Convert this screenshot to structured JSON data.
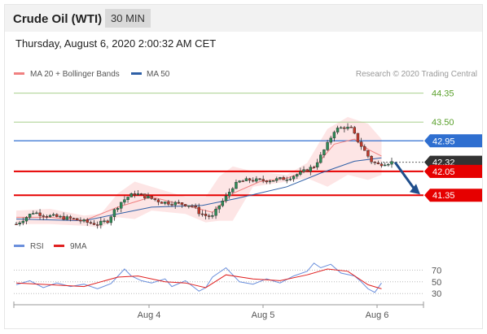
{
  "header": {
    "instrument": "Crude Oil (WTI)",
    "timeframe": "30 MIN",
    "datetime": "Thursday, August 6, 2020 2:00:32 AM CET"
  },
  "legend": {
    "items": [
      {
        "label": "MA 20 + Bollinger Bands",
        "color": "#f08080"
      },
      {
        "label": "MA 50",
        "color": "#2e5fa6"
      }
    ],
    "credit": "Research © 2020 Trading Central"
  },
  "rsi_legend": {
    "items": [
      {
        "label": "RSI",
        "color": "#6a8fdc"
      },
      {
        "label": "9MA",
        "color": "#e02020"
      }
    ]
  },
  "colors": {
    "up_candle": "#2e8b57",
    "down_candle": "#c0392b",
    "bollinger_fill": "#fde2e2",
    "support": "#e60000",
    "pivot": "#2f6fd0",
    "target_line": "#a8d08d",
    "arrow": "#1f4e8c",
    "current_price": "#333333"
  },
  "chart_data": [
    {
      "type": "candlestick",
      "title": "",
      "x_labels": [
        "Aug 4",
        "Aug 5",
        "Aug 6"
      ],
      "ylim": [
        40.4,
        44.7
      ],
      "current_price": 42.32,
      "horizontal_levels": [
        {
          "value": 44.35,
          "label": "44.35",
          "kind": "target"
        },
        {
          "value": 43.5,
          "label": "43.50",
          "kind": "target"
        },
        {
          "value": 42.95,
          "label": "42.95",
          "kind": "pivot"
        },
        {
          "value": 42.05,
          "label": "42.05",
          "kind": "support"
        },
        {
          "value": 41.35,
          "label": "41.35",
          "kind": "support"
        }
      ],
      "current_price_label": "42.32",
      "expected_move": {
        "from": 42.32,
        "to": 41.35
      },
      "price_points": [
        [
          0,
          40.5
        ],
        [
          5,
          40.85
        ],
        [
          9,
          40.75
        ],
        [
          13,
          40.7
        ],
        [
          17,
          40.65
        ],
        [
          21,
          40.55
        ],
        [
          24,
          40.5
        ],
        [
          27,
          40.6
        ],
        [
          29,
          40.9
        ],
        [
          31,
          41.15
        ],
        [
          33,
          41.3
        ],
        [
          35,
          41.4
        ],
        [
          37,
          41.35
        ],
        [
          40,
          41.25
        ],
        [
          43,
          41.15
        ],
        [
          46,
          41.12
        ],
        [
          49,
          41.1
        ],
        [
          52,
          41.05
        ],
        [
          54,
          40.85
        ],
        [
          56,
          40.75
        ],
        [
          58,
          40.72
        ],
        [
          60,
          41.05
        ],
        [
          62,
          41.3
        ],
        [
          64,
          41.6
        ],
        [
          66,
          41.75
        ],
        [
          69,
          41.8
        ],
        [
          72,
          41.78
        ],
        [
          76,
          41.8
        ],
        [
          80,
          41.85
        ],
        [
          84,
          42.0
        ],
        [
          88,
          42.2
        ],
        [
          90,
          42.5
        ],
        [
          92,
          42.85
        ],
        [
          94,
          43.25
        ],
        [
          95,
          43.3
        ],
        [
          97,
          43.35
        ],
        [
          99,
          43.3
        ],
        [
          101,
          42.95
        ],
        [
          103,
          42.65
        ],
        [
          105,
          42.35
        ],
        [
          107,
          42.25
        ],
        [
          109,
          42.3
        ],
        [
          111,
          42.32
        ]
      ],
      "ma20_points": [
        [
          0,
          40.7
        ],
        [
          10,
          40.7
        ],
        [
          20,
          40.6
        ],
        [
          30,
          41.0
        ],
        [
          40,
          41.3
        ],
        [
          50,
          41.05
        ],
        [
          58,
          40.85
        ],
        [
          64,
          41.4
        ],
        [
          72,
          41.75
        ],
        [
          80,
          41.85
        ],
        [
          88,
          42.15
        ],
        [
          94,
          42.85
        ],
        [
          100,
          43.0
        ],
        [
          104,
          42.7
        ],
        [
          108,
          42.5
        ]
      ],
      "ma50_points": [
        [
          0,
          40.65
        ],
        [
          20,
          40.6
        ],
        [
          40,
          41.0
        ],
        [
          55,
          41.05
        ],
        [
          65,
          41.25
        ],
        [
          80,
          41.6
        ],
        [
          90,
          42.0
        ],
        [
          100,
          42.35
        ],
        [
          108,
          42.45
        ]
      ],
      "bollinger_upper": [
        [
          0,
          40.9
        ],
        [
          10,
          40.95
        ],
        [
          20,
          40.75
        ],
        [
          25,
          40.8
        ],
        [
          30,
          41.4
        ],
        [
          35,
          41.75
        ],
        [
          40,
          41.6
        ],
        [
          50,
          41.3
        ],
        [
          56,
          41.3
        ],
        [
          60,
          41.9
        ],
        [
          64,
          42.2
        ],
        [
          70,
          42.05
        ],
        [
          80,
          41.95
        ],
        [
          86,
          42.3
        ],
        [
          92,
          43.3
        ],
        [
          98,
          43.65
        ],
        [
          104,
          43.45
        ],
        [
          108,
          43.0
        ]
      ],
      "bollinger_lower": [
        [
          0,
          40.5
        ],
        [
          10,
          40.5
        ],
        [
          20,
          40.45
        ],
        [
          25,
          40.4
        ],
        [
          30,
          40.7
        ],
        [
          35,
          40.65
        ],
        [
          40,
          40.9
        ],
        [
          50,
          40.8
        ],
        [
          56,
          40.55
        ],
        [
          60,
          40.6
        ],
        [
          64,
          40.6
        ],
        [
          70,
          41.6
        ],
        [
          80,
          41.75
        ],
        [
          86,
          41.85
        ],
        [
          92,
          41.6
        ],
        [
          98,
          41.95
        ],
        [
          104,
          41.8
        ],
        [
          108,
          41.95
        ]
      ]
    },
    {
      "type": "line",
      "title": "",
      "y_ticks": [
        70,
        50,
        30
      ],
      "ylim": [
        15,
        90
      ],
      "series": [
        {
          "name": "RSI",
          "values": [
            [
              0,
              45
            ],
            [
              4,
              52
            ],
            [
              8,
              40
            ],
            [
              12,
              48
            ],
            [
              16,
              42
            ],
            [
              20,
              46
            ],
            [
              24,
              38
            ],
            [
              28,
              47
            ],
            [
              32,
              72
            ],
            [
              34,
              60
            ],
            [
              37,
              52
            ],
            [
              40,
              48
            ],
            [
              44,
              55
            ],
            [
              46,
              42
            ],
            [
              50,
              52
            ],
            [
              54,
              34
            ],
            [
              56,
              40
            ],
            [
              58,
              58
            ],
            [
              62,
              74
            ],
            [
              66,
              50
            ],
            [
              70,
              46
            ],
            [
              74,
              55
            ],
            [
              78,
              48
            ],
            [
              82,
              60
            ],
            [
              86,
              68
            ],
            [
              88,
              82
            ],
            [
              90,
              74
            ],
            [
              93,
              80
            ],
            [
              96,
              65
            ],
            [
              100,
              60
            ],
            [
              102,
              50
            ],
            [
              104,
              38
            ],
            [
              106,
              32
            ],
            [
              108,
              48
            ]
          ]
        },
        {
          "name": "9MA",
          "values": [
            [
              0,
              48
            ],
            [
              10,
              45
            ],
            [
              20,
              42
            ],
            [
              30,
              58
            ],
            [
              36,
              60
            ],
            [
              44,
              50
            ],
            [
              50,
              48
            ],
            [
              56,
              40
            ],
            [
              62,
              62
            ],
            [
              70,
              55
            ],
            [
              78,
              52
            ],
            [
              86,
              62
            ],
            [
              92,
              72
            ],
            [
              98,
              68
            ],
            [
              104,
              45
            ],
            [
              108,
              38
            ]
          ]
        }
      ]
    }
  ]
}
